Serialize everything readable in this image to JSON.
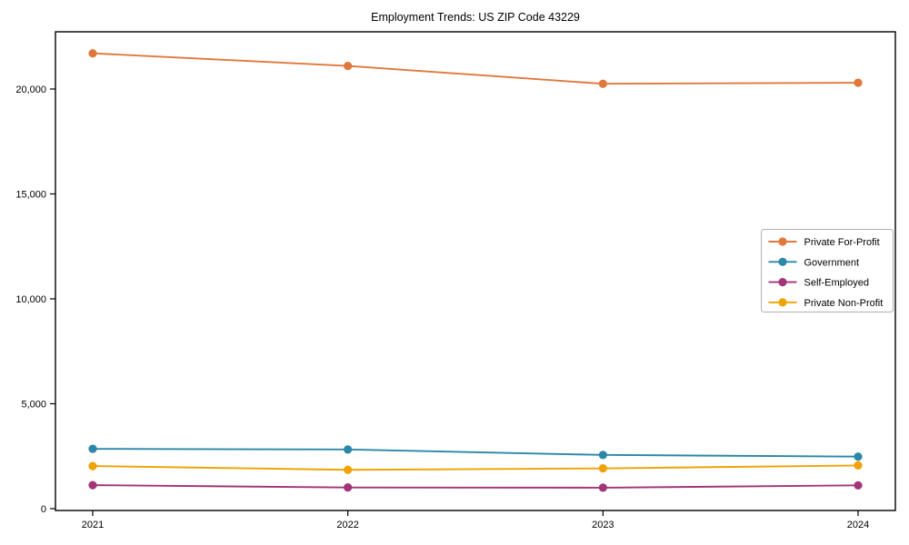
{
  "chart_data": {
    "type": "line",
    "title": "Employment Trends: US ZIP Code 43229",
    "xlabel": "",
    "ylabel": "",
    "categories": [
      "2021",
      "2022",
      "2023",
      "2024"
    ],
    "series": [
      {
        "name": "Private For-Profit",
        "color": "#E2773C",
        "values": [
          21700,
          21100,
          20250,
          20300
        ]
      },
      {
        "name": "Government",
        "color": "#2B87A8",
        "values": [
          2850,
          2820,
          2560,
          2480
        ]
      },
      {
        "name": "Self-Employed",
        "color": "#A23578",
        "values": [
          1120,
          1010,
          1000,
          1110
        ]
      },
      {
        "name": "Private Non-Profit",
        "color": "#F0A202",
        "values": [
          2030,
          1850,
          1920,
          2060
        ]
      }
    ],
    "yticks": [
      0,
      5000,
      10000,
      15000,
      20000
    ],
    "ytick_labels": [
      "0",
      "5,000",
      "10,000",
      "15,000",
      "20,000"
    ],
    "ylim": [
      -87,
      22727
    ],
    "grid": false,
    "legend_position": "center right",
    "marker": "o",
    "axis_color": "#000000",
    "legend_border_color": "#b0b0b0",
    "background_color": "#ffffff"
  }
}
